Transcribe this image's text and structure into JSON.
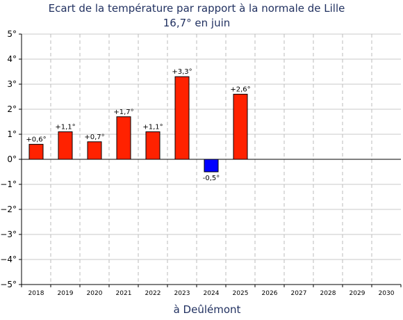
{
  "chart_data": {
    "type": "bar",
    "title": "Ecart de la température par rapport à la normale de Lille",
    "subtitle": "16,7° en juin",
    "xlabel": "à Deûlémont",
    "ylabel": "",
    "ylim": [
      -5,
      5
    ],
    "y_ticks": [
      {
        "value": 5,
        "label": "5°"
      },
      {
        "value": 4,
        "label": "4°"
      },
      {
        "value": 3,
        "label": "3°"
      },
      {
        "value": 2,
        "label": "2°"
      },
      {
        "value": 1,
        "label": "1°"
      },
      {
        "value": 0,
        "label": "0°"
      },
      {
        "value": -1,
        "label": "−1°"
      },
      {
        "value": -2,
        "label": "−2°"
      },
      {
        "value": -3,
        "label": "−3°"
      },
      {
        "value": -4,
        "label": "−4°"
      },
      {
        "value": -5,
        "label": "−5°"
      }
    ],
    "categories": [
      "2018",
      "2019",
      "2020",
      "2021",
      "2022",
      "2023",
      "2024",
      "2025",
      "2026",
      "2027",
      "2028",
      "2029",
      "2030"
    ],
    "values": [
      0.6,
      1.1,
      0.7,
      1.7,
      1.1,
      3.3,
      -0.5,
      2.6,
      null,
      null,
      null,
      null,
      null
    ],
    "data_labels": [
      "+0,6°",
      "+1,1°",
      "+0,7°",
      "+1,7°",
      "+1,1°",
      "+3,3°",
      "-0,5°",
      "+2,6°",
      null,
      null,
      null,
      null,
      null
    ],
    "grid": true,
    "colors": {
      "positive": "#ff2200",
      "negative": "#0000ff",
      "grid_horizontal": "#c8c8c8",
      "grid_vertical": "#bbbbbb",
      "title": "#1f2f5f"
    }
  }
}
